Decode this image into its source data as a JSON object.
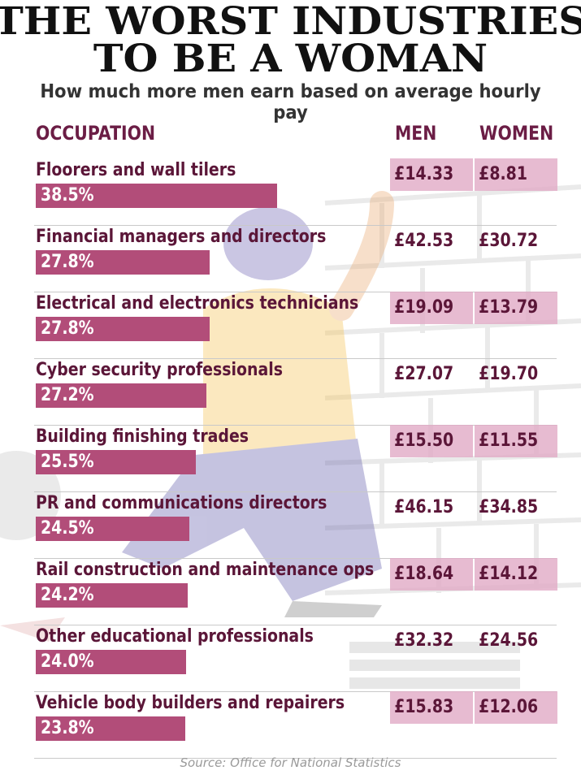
{
  "title_line1": "THE WORST INDUSTRIES",
  "title_line2": "TO BE A WOMAN",
  "subtitle": "How much more men earn based on average hourly pay",
  "source": "Source: Office for National Statistics",
  "colors": {
    "bar": "#b24d79",
    "text": "#5b1638",
    "header": "#6b1d45",
    "row_shade": "#e1aac6"
  },
  "chart_data": {
    "type": "table",
    "columns": [
      "OCCUPATION",
      "MEN",
      "WOMEN"
    ],
    "rows": [
      {
        "occupation": "Floorers and wall tilers",
        "gap": "38.5%",
        "gap_value": 38.5,
        "men": "£14.33",
        "women": "£8.81"
      },
      {
        "occupation": "Financial managers and directors",
        "gap": "27.8%",
        "gap_value": 27.8,
        "men": "£42.53",
        "women": "£30.72"
      },
      {
        "occupation": "Electrical and electronics technicians",
        "gap": "27.8%",
        "gap_value": 27.8,
        "men": "£19.09",
        "women": "£13.79"
      },
      {
        "occupation": "Cyber security professionals",
        "gap": "27.2%",
        "gap_value": 27.2,
        "men": "£27.07",
        "women": "£19.70"
      },
      {
        "occupation": "Building finishing trades",
        "gap": "25.5%",
        "gap_value": 25.5,
        "men": "£15.50",
        "women": "£11.55"
      },
      {
        "occupation": "PR and communications directors",
        "gap": "24.5%",
        "gap_value": 24.5,
        "men": "£46.15",
        "women": "£34.85"
      },
      {
        "occupation": "Rail construction and maintenance ops",
        "gap": "24.2%",
        "gap_value": 24.2,
        "men": "£18.64",
        "women": "£14.12"
      },
      {
        "occupation": "Other educational professionals",
        "gap": "24.0%",
        "gap_value": 24.0,
        "men": "£32.32",
        "women": "£24.56"
      },
      {
        "occupation": "Vehicle body builders and repairers",
        "gap": "23.8%",
        "gap_value": 23.8,
        "men": "£15.83",
        "women": "£12.06"
      }
    ],
    "bar_max": 38.5
  }
}
